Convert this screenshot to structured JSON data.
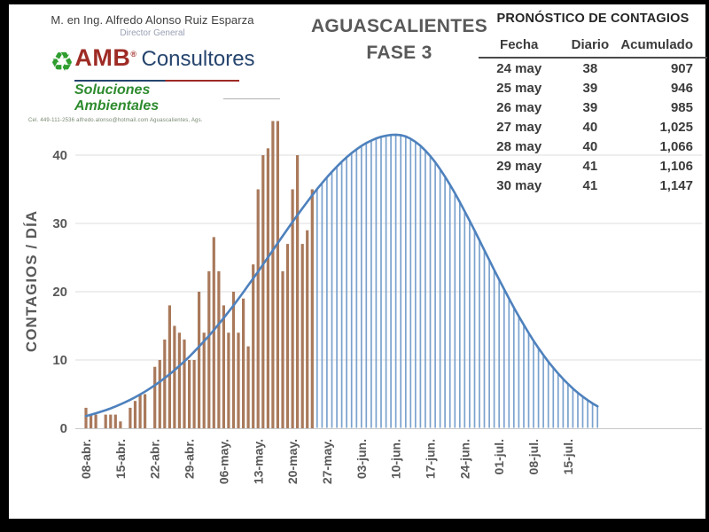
{
  "header": {
    "author_name": "M. en Ing. Alfredo Alonso Ruiz Esparza",
    "author_title": "Director General",
    "logo": {
      "brand": "AMB",
      "reg_mark": "®",
      "brand_suffix": "Consultores",
      "tagline": "Soluciones Ambientales",
      "contact": "Cel. 449-111-2536    alfredo.alonso@hotmail.com    Aguascalientes, Ags.",
      "recycle_icon_color": "#2f9e2f"
    },
    "title_line1": "AGUASCALIENTES",
    "title_line2": "FASE 3"
  },
  "forecast_table": {
    "title": "PRONÓSTICO DE CONTAGIOS",
    "columns": [
      "Fecha",
      "Diario",
      "Acumulado"
    ],
    "rows": [
      [
        "24 may",
        "38",
        "907"
      ],
      [
        "25 may",
        "39",
        "946"
      ],
      [
        "26 may",
        "39",
        "985"
      ],
      [
        "27 may",
        "40",
        "1,025"
      ],
      [
        "28 may",
        "40",
        "1,066"
      ],
      [
        "29 may",
        "41",
        "1,106"
      ],
      [
        "30 may",
        "41",
        "1,147"
      ]
    ]
  },
  "chart_data": {
    "type": "bar",
    "title": "",
    "xlabel": "",
    "ylabel": "CONTAGIOS / DÍA",
    "y_ticks": [
      0,
      10,
      20,
      30,
      40
    ],
    "ylim": [
      0,
      47
    ],
    "grid": "horizontal",
    "x_tick_labels": [
      "08-abr.",
      "15-abr.",
      "22-abr.",
      "29-abr.",
      "06-may.",
      "13-may.",
      "20-may.",
      "27-may.",
      "03-jun.",
      "10-jun.",
      "17-jun.",
      "24-jun.",
      "01-jul.",
      "08-jul.",
      "15-jul."
    ],
    "x_tick_days": [
      0,
      7,
      14,
      21,
      28,
      35,
      42,
      49,
      56,
      63,
      70,
      77,
      84,
      91,
      98
    ],
    "bars": {
      "name": "contagios diarios observados (08-abr a 24-may)",
      "start_day": 0,
      "values": [
        3,
        2,
        2,
        0,
        2,
        2,
        2,
        1,
        0,
        3,
        4,
        5,
        5,
        0,
        9,
        10,
        13,
        18,
        15,
        14,
        13,
        10,
        10,
        20,
        14,
        23,
        28,
        23,
        18,
        14,
        20,
        14,
        19,
        12,
        24,
        35,
        40,
        41,
        45,
        45,
        23,
        27,
        35,
        40,
        27,
        29,
        35
      ],
      "color": "#a9795b"
    },
    "curve": {
      "name": "curva modelo de pronóstico (campana)",
      "peak_value": 43,
      "peak_day": 63,
      "sigma_left_days": 25,
      "sigma_right_days": 18,
      "start_day": 0,
      "end_day": 104,
      "color": "#4e81bd"
    },
    "forecast_fill": {
      "name": "área pronóstico (líneas verticales)",
      "start_day": 47,
      "end_day": 104,
      "color": "#7ba2ce"
    },
    "gridline_color": "#dedede",
    "axis_text_color": "#595959"
  }
}
